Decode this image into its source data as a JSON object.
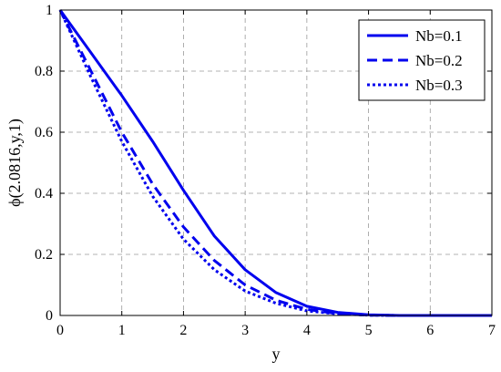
{
  "chart_data": {
    "type": "line",
    "title": "",
    "xlabel": "y",
    "ylabel": "ϕ(2.0816,y,1)",
    "xlim": [
      0,
      7
    ],
    "ylim": [
      0,
      1
    ],
    "xticks": [
      "0",
      "1",
      "2",
      "3",
      "4",
      "5",
      "6",
      "7"
    ],
    "yticks": [
      "0",
      "0.2",
      "0.4",
      "0.6",
      "0.8",
      "1"
    ],
    "grid": true,
    "legend_position": "top-right",
    "line_color": "#0000ee",
    "series": [
      {
        "name": "Nb=0.1",
        "style": "solid",
        "x": [
          0,
          0.5,
          1,
          1.5,
          2,
          2.5,
          3,
          3.5,
          4,
          4.5,
          5,
          5.5,
          6,
          6.5,
          7
        ],
        "y": [
          1,
          0.86,
          0.72,
          0.57,
          0.41,
          0.26,
          0.15,
          0.075,
          0.03,
          0.01,
          0.002,
          0,
          0,
          0,
          0
        ]
      },
      {
        "name": "Nb=0.2",
        "style": "dashed",
        "x": [
          0,
          0.5,
          1,
          1.5,
          2,
          2.5,
          3,
          3.5,
          4,
          4.5,
          5,
          5.5,
          6,
          6.5,
          7
        ],
        "y": [
          1,
          0.8,
          0.6,
          0.43,
          0.29,
          0.18,
          0.1,
          0.05,
          0.02,
          0.006,
          0.001,
          0,
          0,
          0,
          0
        ]
      },
      {
        "name": "Nb=0.3",
        "style": "dotted",
        "x": [
          0,
          0.5,
          1,
          1.5,
          2,
          2.5,
          3,
          3.5,
          4,
          4.5,
          5,
          5.5,
          6,
          6.5,
          7
        ],
        "y": [
          1,
          0.78,
          0.57,
          0.39,
          0.25,
          0.15,
          0.08,
          0.04,
          0.015,
          0.005,
          0.001,
          0,
          0,
          0,
          0
        ]
      }
    ]
  }
}
